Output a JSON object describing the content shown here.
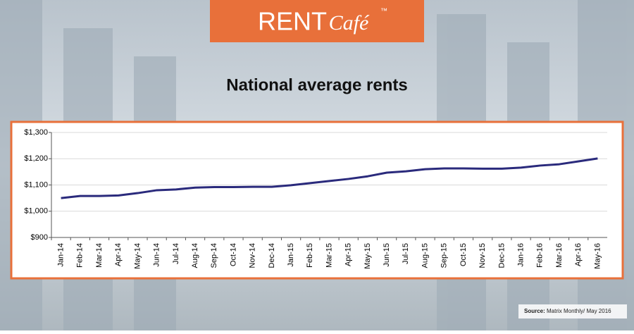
{
  "chart_data": {
    "type": "line",
    "logo": {
      "brand": "RENT",
      "script": "Café",
      "mark": "™"
    },
    "title": "National average rents",
    "source_label": "Source:",
    "source": "Matrix Monthly/ May 2016",
    "categories": [
      "Jan-14",
      "Feb-14",
      "Mar-14",
      "Apr-14",
      "May-14",
      "Jun-14",
      "Jul-14",
      "Aug-14",
      "Sep-14",
      "Oct-14",
      "Nov-14",
      "Dec-14",
      "Jan-15",
      "Feb-15",
      "Mar-15",
      "Apr-15",
      "May-15",
      "Jun-15",
      "Jul-15",
      "Aug-15",
      "Sep-15",
      "Oct-15",
      "Nov-15",
      "Dec-15",
      "Jan-16",
      "Feb-16",
      "Mar-16",
      "Apr-16",
      "May-16"
    ],
    "values": [
      1050,
      1058,
      1058,
      1060,
      1069,
      1080,
      1083,
      1090,
      1092,
      1092,
      1093,
      1093,
      1099,
      1107,
      1115,
      1123,
      1133,
      1147,
      1152,
      1160,
      1163,
      1163,
      1162,
      1162,
      1166,
      1174,
      1179,
      1190,
      1201
    ],
    "color": "#2a2a7c",
    "ylim": [
      900,
      1300
    ],
    "yticks": [
      {
        "value": 900,
        "label": "$900"
      },
      {
        "value": 1000,
        "label": "$1,000"
      },
      {
        "value": 1100,
        "label": "$1,100"
      },
      {
        "value": 1200,
        "label": "$1,200"
      },
      {
        "value": 1300,
        "label": "$1,300"
      }
    ],
    "grid": true
  }
}
